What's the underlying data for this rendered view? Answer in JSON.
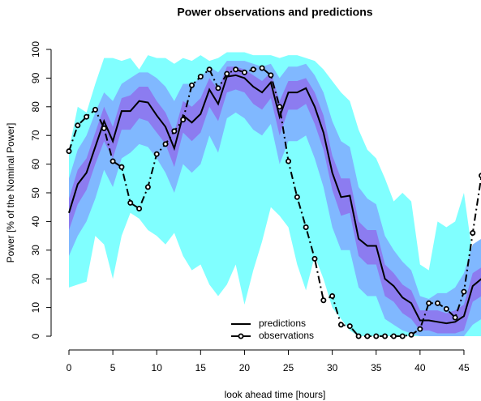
{
  "chart_data": {
    "type": "line",
    "title": "Power observations and predictions",
    "x_label": "look ahead time [hours]",
    "y_label": "Power [% of the Nominal Power]",
    "x": [
      0,
      1,
      2,
      3,
      4,
      5,
      6,
      7,
      8,
      9,
      10,
      11,
      12,
      13,
      14,
      15,
      16,
      17,
      18,
      19,
      20,
      21,
      22,
      23,
      24,
      25,
      26,
      27,
      28,
      29,
      30,
      31,
      32,
      33,
      34,
      35,
      36,
      37,
      38,
      39,
      40,
      41,
      42,
      43,
      44,
      45,
      46,
      47
    ],
    "xlim": [
      0,
      47
    ],
    "ylim": [
      0,
      100
    ],
    "xticks": [
      0,
      5,
      10,
      15,
      20,
      25,
      30,
      35,
      40,
      45
    ],
    "yticks": [
      0,
      10,
      20,
      30,
      40,
      50,
      60,
      70,
      80,
      90,
      100
    ],
    "legend": "bottom",
    "bands": [
      {
        "color": "#80ffff",
        "lower": [
          17,
          18,
          19,
          35,
          32,
          20,
          35,
          43,
          41,
          37,
          35,
          32,
          36,
          28,
          23,
          25,
          18,
          14,
          18,
          25,
          11,
          23,
          33,
          45,
          42,
          38,
          25,
          16,
          28,
          20,
          10,
          6,
          2,
          0,
          0,
          0,
          0,
          0,
          0,
          0,
          0,
          0,
          0,
          0,
          0,
          0,
          0,
          0
        ],
        "upper": [
          65,
          80,
          78,
          88,
          97,
          97,
          96,
          97,
          93,
          98,
          97,
          97,
          95,
          97,
          96,
          98,
          96,
          97,
          99,
          99,
          99,
          98,
          98,
          98,
          97,
          98,
          98,
          97,
          96,
          93,
          89,
          85,
          82,
          72,
          65,
          62,
          55,
          47,
          50,
          47,
          25,
          23,
          40,
          38,
          40,
          50,
          28,
          26
        ]
      },
      {
        "color": "#80b8ff",
        "lower": [
          28,
          35,
          40,
          48,
          58,
          52,
          62,
          64,
          67,
          66,
          62,
          57,
          50,
          60,
          57,
          60,
          70,
          64,
          76,
          78,
          76,
          72,
          70,
          74,
          60,
          68,
          68,
          70,
          62,
          52,
          38,
          30,
          30,
          17,
          14,
          14,
          6,
          4,
          2,
          1,
          0,
          0,
          0,
          0,
          0,
          0,
          4,
          6
        ],
        "upper": [
          55,
          65,
          70,
          78,
          85,
          82,
          88,
          90,
          92,
          92,
          90,
          87,
          82,
          88,
          88,
          90,
          94,
          92,
          96,
          96,
          96,
          95,
          94,
          95,
          90,
          94,
          94,
          95,
          91,
          85,
          75,
          68,
          66,
          52,
          48,
          46,
          35,
          30,
          26,
          23,
          14,
          13,
          15,
          15,
          17,
          22,
          32,
          34
        ]
      },
      {
        "color": "#8c7cf0",
        "lower": [
          37,
          46,
          51,
          60,
          68,
          62,
          72,
          72,
          76,
          75,
          71,
          67,
          59,
          71,
          68,
          71,
          80,
          75,
          85,
          86,
          85,
          81,
          79,
          83,
          70,
          79,
          79,
          81,
          74,
          65,
          51,
          42,
          43,
          28,
          25,
          25,
          14,
          12,
          8,
          6,
          2,
          2,
          1,
          1,
          1,
          2,
          12,
          14
        ],
        "upper": [
          48,
          58,
          62,
          71,
          80,
          73,
          83,
          84,
          87,
          87,
          82,
          78,
          71,
          82,
          80,
          83,
          90,
          86,
          94,
          94,
          93,
          91,
          89,
          92,
          82,
          89,
          89,
          90,
          85,
          77,
          63,
          55,
          55,
          40,
          37,
          37,
          25,
          22,
          18,
          16,
          9,
          9,
          9,
          8,
          9,
          11,
          22,
          24
        ]
      }
    ],
    "series": [
      {
        "name": "predictions",
        "color": "#000000",
        "marker": false,
        "values": [
          43,
          53,
          57,
          66,
          75,
          68,
          78.5,
          78.5,
          82,
          81.5,
          77,
          73,
          65.5,
          77,
          74.5,
          77.5,
          86,
          81,
          90.5,
          91,
          90,
          87,
          85,
          88.5,
          76.5,
          85,
          85,
          86.5,
          80,
          71,
          57,
          48.5,
          49,
          34,
          31.5,
          31.5,
          20,
          17.5,
          13.5,
          11.5,
          5.5,
          5.5,
          5,
          4.5,
          5,
          7,
          17.5,
          20
        ]
      },
      {
        "name": "observations",
        "color": "#000000",
        "marker": true,
        "values": [
          64.5,
          73.5,
          76.5,
          79,
          72.5,
          61,
          59,
          46.5,
          44.5,
          52,
          63.5,
          67,
          71.5,
          75.5,
          87.5,
          90.5,
          93,
          86.5,
          91.5,
          93,
          92,
          93,
          93.5,
          91,
          80,
          61,
          48.5,
          38,
          27,
          12.5,
          14,
          4,
          3.5,
          0,
          0,
          0,
          0,
          0,
          0,
          0.5,
          2.5,
          11.5,
          11.5,
          9.5,
          6.5,
          15.5,
          36,
          56
        ]
      }
    ]
  }
}
